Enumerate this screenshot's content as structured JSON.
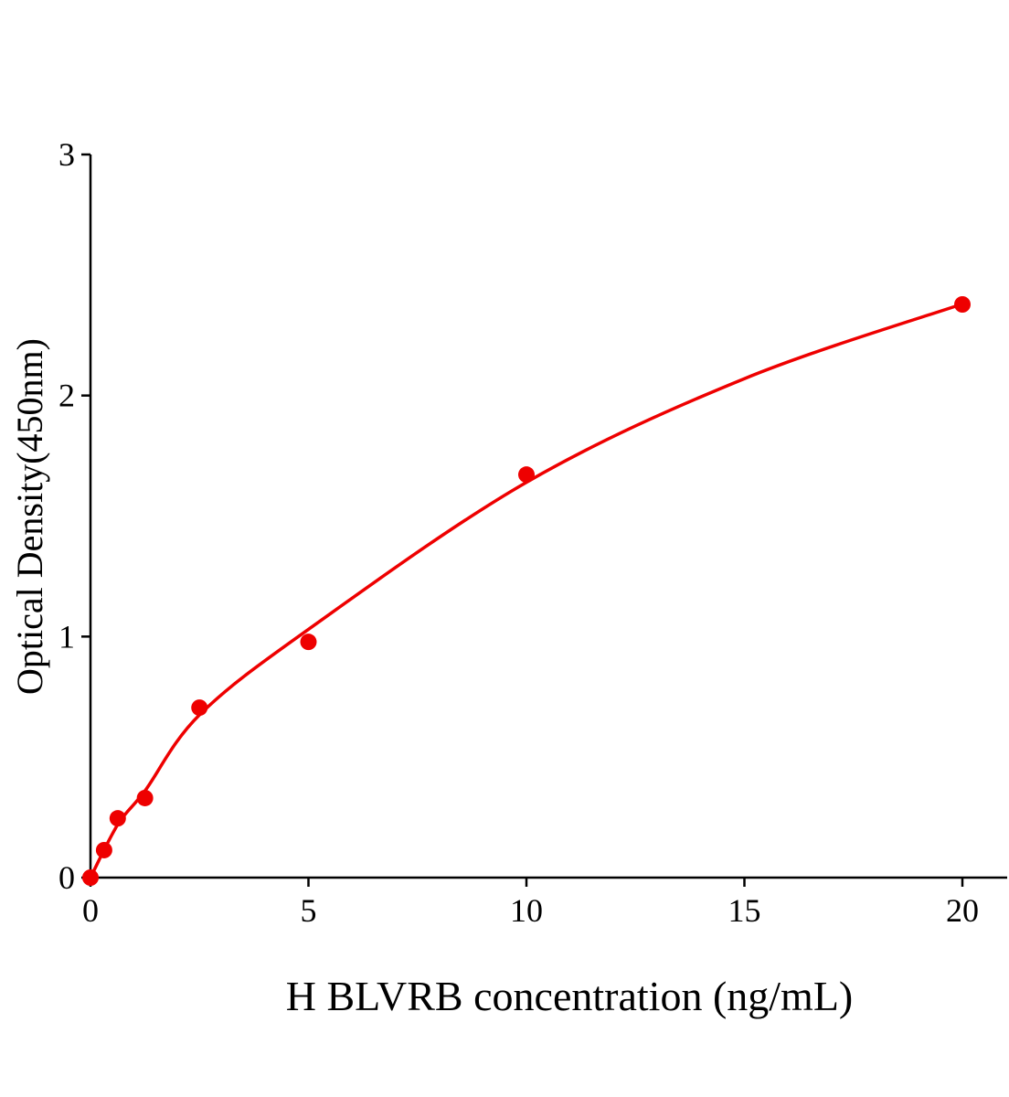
{
  "chart_data": {
    "type": "scatter",
    "title": "",
    "xlabel": "H BLVRB concentration (ng/mL)",
    "ylabel": "Optical Density(450nm)",
    "xlim": [
      0,
      21
    ],
    "ylim": [
      0,
      3
    ],
    "xticks": [
      0,
      5,
      10,
      15,
      20
    ],
    "yticks": [
      0,
      1,
      2,
      3
    ],
    "grid": false,
    "legend": "none",
    "color": "#ee0000",
    "series": [
      {
        "x": [
          0,
          0.3125,
          0.625,
          1.25,
          2.5,
          5,
          10,
          20
        ],
        "y": [
          0.0,
          0.114,
          0.246,
          0.33,
          0.705,
          0.978,
          1.672,
          2.378
        ]
      }
    ],
    "fit_curve": {
      "x": [
        0,
        0.625,
        1.25,
        2.5,
        5,
        10,
        15,
        20
      ],
      "y": [
        0,
        0.22,
        0.36,
        0.675,
        1.03,
        1.64,
        2.07,
        2.38
      ]
    }
  }
}
